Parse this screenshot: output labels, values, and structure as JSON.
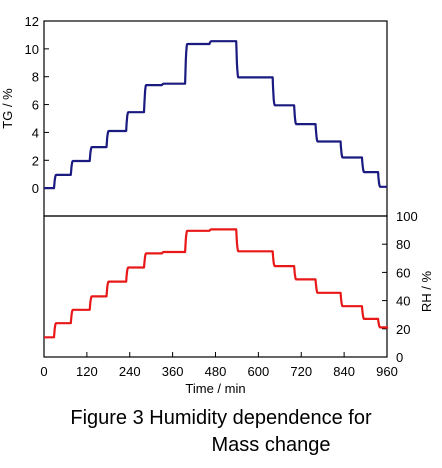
{
  "caption": {
    "line1": "Figure 3  Humidity dependence for",
    "line2": "Mass change"
  },
  "chart_data": {
    "type": "line",
    "x": {
      "label": "Time / min",
      "range": [
        0,
        960
      ],
      "ticks": [
        0,
        120,
        240,
        360,
        480,
        600,
        720,
        840,
        960
      ]
    },
    "panels": [
      {
        "position": "top",
        "ylabel": "TG / %",
        "ylabel_side": "left",
        "ylim": [
          -2,
          12
        ],
        "yticks": [
          0,
          2,
          4,
          6,
          8,
          10,
          12
        ],
        "series": [
          {
            "color": "#1a1a80",
            "step_times": [
              0,
              28,
              75,
              128,
              175,
              230,
              280,
              330,
              395,
              463,
              538,
              640,
              700,
              760,
              830,
              890,
              935,
              960
            ],
            "values": [
              0.0,
              0.95,
              1.95,
              2.95,
              4.1,
              5.45,
              7.4,
              7.5,
              10.35,
              10.55,
              7.95,
              5.95,
              4.6,
              3.35,
              2.2,
              1.15,
              0.1,
              0.1
            ]
          }
        ]
      },
      {
        "position": "bottom",
        "ylabel": "RH / %",
        "ylabel_side": "right",
        "ylim": [
          0,
          100
        ],
        "yticks": [
          0,
          20,
          40,
          60,
          80,
          100
        ],
        "series": [
          {
            "color": "#e81818",
            "step_times": [
              0,
              28,
              75,
              128,
              175,
              230,
              280,
              330,
              395,
              463,
              538,
              640,
              700,
              760,
              830,
              890,
              935,
              960
            ],
            "values": [
              14,
              24,
              33.5,
              43,
              53.5,
              63.5,
              73.5,
              74.5,
              89.5,
              90.5,
              75,
              64.5,
              55,
              45.5,
              36,
              27,
              21,
              20
            ]
          }
        ]
      }
    ]
  }
}
